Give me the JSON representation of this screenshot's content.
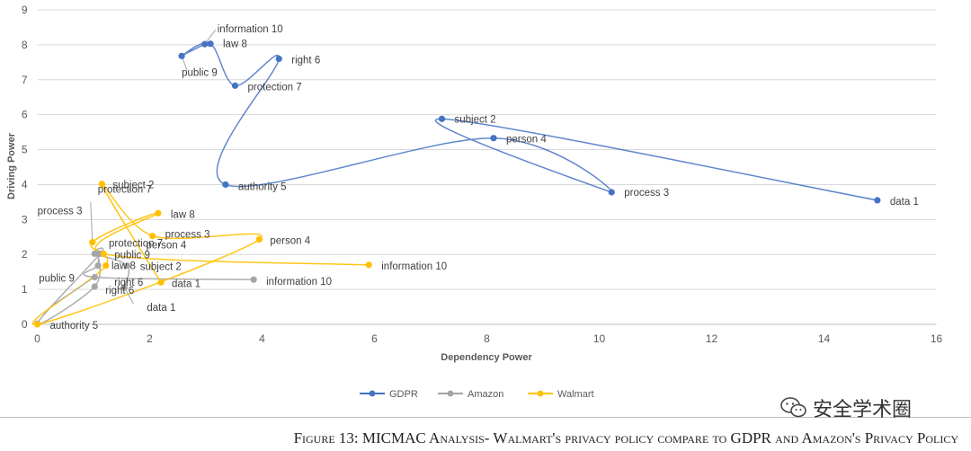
{
  "chart_data": {
    "type": "scatter",
    "xlabel": "Dependency Power",
    "ylabel": "Driving Power",
    "xlim": [
      0,
      16
    ],
    "ylim": [
      0,
      9
    ],
    "x_ticks": [
      "0",
      "2",
      "4",
      "6",
      "8",
      "10",
      "12",
      "14",
      "16"
    ],
    "y_ticks": [
      "0",
      "1",
      "2",
      "3",
      "4",
      "5",
      "6",
      "7",
      "8",
      "9"
    ],
    "grid": "horizontal",
    "legend_position": "bottom",
    "series": [
      {
        "name": "GDPR",
        "color": "#4472c4",
        "line": "smooth",
        "points": [
          {
            "label": "data 1",
            "x": 14.95,
            "y": 3.55
          },
          {
            "label": "subject 2",
            "x": 7.2,
            "y": 5.88
          },
          {
            "label": "process 3",
            "x": 10.22,
            "y": 3.78
          },
          {
            "label": "person 4",
            "x": 8.12,
            "y": 5.33
          },
          {
            "label": "authority 5",
            "x": 3.35,
            "y": 4.0
          },
          {
            "label": "right 6",
            "x": 4.3,
            "y": 7.6
          },
          {
            "label": "protection 7",
            "x": 3.52,
            "y": 6.83
          },
          {
            "label": "law 8",
            "x": 3.08,
            "y": 8.03
          },
          {
            "label": "public 9",
            "x": 2.57,
            "y": 7.68
          },
          {
            "label": "information 10",
            "x": 2.98,
            "y": 8.02
          }
        ]
      },
      {
        "name": "Amazon",
        "color": "#a5a5a5",
        "line": "smooth",
        "points": [
          {
            "label": "data 1",
            "x": 1.55,
            "y": 1.05
          },
          {
            "label": "subject 2",
            "x": 1.6,
            "y": 1.68
          },
          {
            "label": "process 3",
            "x": 1.02,
            "y": 2.02
          },
          {
            "label": "person 4",
            "x": 1.12,
            "y": 2.02
          },
          {
            "label": "authority 5",
            "x": 0.0,
            "y": 0.02
          },
          {
            "label": "right 6",
            "x": 1.02,
            "y": 1.08
          },
          {
            "label": "protection 7",
            "x": 1.08,
            "y": 2.02
          },
          {
            "label": "law 8",
            "x": 1.08,
            "y": 1.68
          },
          {
            "label": "public 9",
            "x": 1.02,
            "y": 1.35
          },
          {
            "label": "information 10",
            "x": 3.85,
            "y": 1.28
          }
        ]
      },
      {
        "name": "Walmart",
        "color": "#ffc000",
        "line": "smooth",
        "points": [
          {
            "label": "data 1",
            "x": 2.2,
            "y": 1.2
          },
          {
            "label": "subject 2",
            "x": 1.15,
            "y": 4.02
          },
          {
            "label": "process 3",
            "x": 2.05,
            "y": 2.53
          },
          {
            "label": "person 4",
            "x": 3.95,
            "y": 2.43
          },
          {
            "label": "authority 5",
            "x": 0.0,
            "y": 0.0
          },
          {
            "label": "right 6",
            "x": 1.22,
            "y": 1.68
          },
          {
            "label": "protection 7",
            "x": 0.98,
            "y": 2.35
          },
          {
            "label": "law 8",
            "x": 2.15,
            "y": 3.18
          },
          {
            "label": "public 9",
            "x": 1.18,
            "y": 2.02
          },
          {
            "label": "information 10",
            "x": 5.9,
            "y": 1.7
          }
        ]
      }
    ],
    "labels": [
      {
        "series": "GDPR",
        "point": "data 1",
        "text": "data 1",
        "dx": 14,
        "dy": 5,
        "anchor": "start"
      },
      {
        "series": "GDPR",
        "point": "subject 2",
        "text": "subject 2",
        "dx": 14,
        "dy": 4,
        "anchor": "start"
      },
      {
        "series": "GDPR",
        "point": "process 3",
        "text": "process 3",
        "dx": 14,
        "dy": 4,
        "anchor": "start"
      },
      {
        "series": "GDPR",
        "point": "person 4",
        "text": "person 4",
        "dx": 14,
        "dy": 5,
        "anchor": "start"
      },
      {
        "series": "GDPR",
        "point": "authority 5",
        "text": "authority 5",
        "dx": 14,
        "dy": 6,
        "anchor": "start"
      },
      {
        "series": "GDPR",
        "point": "right 6",
        "text": "right 6",
        "dx": 14,
        "dy": 5,
        "anchor": "start"
      },
      {
        "series": "GDPR",
        "point": "protection 7",
        "text": "protection 7",
        "dx": 14,
        "dy": 5,
        "anchor": "start"
      },
      {
        "series": "GDPR",
        "point": "law 8",
        "text": "law 8",
        "dx": 14,
        "dy": 4,
        "anchor": "start"
      },
      {
        "series": "GDPR",
        "point": "public 9",
        "text": "public 9",
        "dx": 0,
        "dy": 22,
        "anchor": "start",
        "leader": [
          6,
          16
        ]
      },
      {
        "series": "GDPR",
        "point": "information 10",
        "text": "information 10",
        "dx": 14,
        "dy": -13,
        "anchor": "start",
        "leader": [
          12,
          -16
        ]
      },
      {
        "series": "Walmart",
        "point": "subject 2",
        "text": "subject 2",
        "dx": 12,
        "dy": 5,
        "anchor": "start"
      },
      {
        "series": "Walmart",
        "point": "protection 7",
        "text": "protection 7",
        "dx": 6,
        "dy": -55,
        "anchor": "start",
        "leader": [
          -2,
          -45
        ]
      },
      {
        "series": "Walmart",
        "point": "process 3",
        "text": "process 3",
        "dx": -128,
        "dy": -24,
        "anchor": "start"
      },
      {
        "series": "Walmart",
        "point": "law 8",
        "text": "law 8",
        "dx": 14,
        "dy": 5,
        "anchor": "start"
      },
      {
        "series": "Walmart",
        "point": "process 3",
        "text": "process 3",
        "dx": 14,
        "dy": 2,
        "anchor": "start"
      },
      {
        "series": "Walmart",
        "point": "person 4",
        "text": "person 4",
        "dx": 12,
        "dy": 5,
        "anchor": "start"
      },
      {
        "series": "Amazon",
        "point": "protection 7",
        "text": "protection 7",
        "dx": 12,
        "dy": -8,
        "anchor": "start"
      },
      {
        "series": "Amazon",
        "point": "person 4",
        "text": "person 4",
        "dx": 51,
        "dy": -6,
        "anchor": "start"
      },
      {
        "series": "Walmart",
        "point": "public 9",
        "text": "public 9",
        "dx": 12,
        "dy": 5,
        "anchor": "start"
      },
      {
        "series": "Amazon",
        "point": "law 8",
        "text": "law 8",
        "dx": 15,
        "dy": 4,
        "anchor": "start"
      },
      {
        "series": "Amazon",
        "point": "right 6",
        "text": "right 6",
        "dx": 22,
        "dy": -1,
        "anchor": "start"
      },
      {
        "series": "Walmart",
        "point": "right 6",
        "text": "subject 2",
        "dx": 38,
        "dy": 5,
        "anchor": "start"
      },
      {
        "series": "Amazon",
        "point": "public 9",
        "text": "public 9",
        "dx": -62,
        "dy": 5,
        "anchor": "start",
        "leader": [
          -45,
          30
        ]
      },
      {
        "series": "Amazon",
        "point": "right 6",
        "text": "right 6",
        "dx": 12,
        "dy": 8,
        "anchor": "start"
      },
      {
        "series": "Walmart",
        "point": "data 1",
        "text": "data 1",
        "dx": 12,
        "dy": 5,
        "anchor": "start"
      },
      {
        "series": "Amazon",
        "point": "data 1",
        "text": "data 1",
        "dx": 25,
        "dy": 26,
        "anchor": "start",
        "leader": [
          10,
          18
        ]
      },
      {
        "series": "Amazon",
        "point": "information 10",
        "text": "information 10",
        "dx": 14,
        "dy": 6,
        "anchor": "start"
      },
      {
        "series": "Walmart",
        "point": "information 10",
        "text": "information 10",
        "dx": 14,
        "dy": 5,
        "anchor": "start"
      },
      {
        "series": "Walmart",
        "point": "authority 5",
        "text": "authority 5",
        "dx": 14,
        "dy": 5,
        "anchor": "start"
      }
    ]
  },
  "caption": "Figure 13: MICMAC Analysis- Walmart's privacy policy compare to GDPR and Amazon's Privacy Policy",
  "watermark": {
    "text": "安全学术圈",
    "icon": "wechat-icon"
  }
}
